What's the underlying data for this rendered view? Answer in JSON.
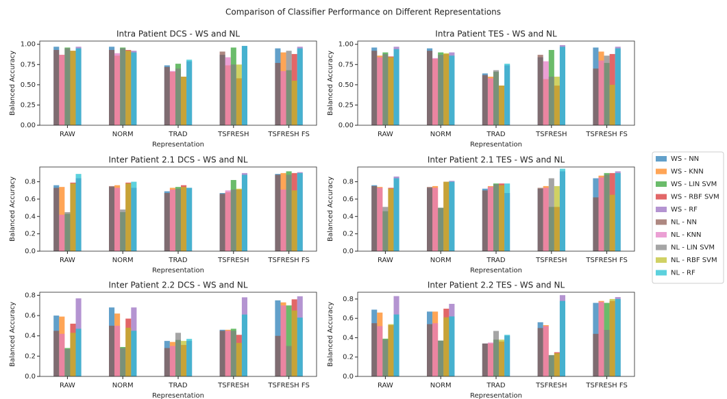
{
  "title": "Comparison of Classifier Performance on Different Representations",
  "chart_data": [
    {
      "type": "bar",
      "title": "Intra Patient DCS - WS and NL",
      "xlabel": "Representation",
      "ylabel": "Balanced Accuracy",
      "categories": [
        "RAW",
        "NORM",
        "TRAD",
        "TSFRESH",
        "TSFRESH FS"
      ],
      "ylim": [
        0,
        1.04
      ],
      "yticks": [
        {
          "value": 0,
          "label": "0.00"
        },
        {
          "value": 0.25,
          "label": "0.25"
        },
        {
          "value": 0.5,
          "label": "0.50"
        },
        {
          "value": 0.75,
          "label": "0.75"
        },
        {
          "value": 1,
          "label": "1.00"
        }
      ],
      "series": [
        {
          "name": "WS - NN",
          "color": "#1f77b4",
          "values": [
            0.97,
            0.97,
            0.74,
            0.87,
            0.95
          ]
        },
        {
          "name": "WS - KNN",
          "color": "#ff7f0e",
          "values": [
            0.87,
            0.86,
            0.66,
            0.74,
            0.9
          ]
        },
        {
          "name": "WS - LIN SVM",
          "color": "#2ca02c",
          "values": [
            0.96,
            0.96,
            0.76,
            0.96,
            0.68
          ]
        },
        {
          "name": "WS - RBF SVM",
          "color": "#d62728",
          "values": [
            0.92,
            0.93,
            0.6,
            0.58,
            0.88
          ]
        },
        {
          "name": "WS - RF",
          "color": "#9467bd",
          "values": [
            0.97,
            0.92,
            0.79,
            0.98,
            0.97
          ]
        },
        {
          "name": "NL - NN",
          "color": "#8c564b",
          "values": [
            0.93,
            0.93,
            0.72,
            0.91,
            0.77
          ]
        },
        {
          "name": "NL - KNN",
          "color": "#e377c2",
          "values": [
            0.87,
            0.89,
            0.67,
            0.84,
            0.67
          ]
        },
        {
          "name": "NL - LIN SVM",
          "color": "#7f7f7f",
          "values": [
            0.95,
            0.95,
            0.7,
            0.75,
            0.92
          ]
        },
        {
          "name": "NL - RBF SVM",
          "color": "#bcbd22",
          "values": [
            0.92,
            0.92,
            0.6,
            0.75,
            0.55
          ]
        },
        {
          "name": "NL - RF",
          "color": "#17becf",
          "values": [
            0.95,
            0.9,
            0.81,
            0.98,
            0.95
          ]
        }
      ]
    },
    {
      "type": "bar",
      "title": "Intra Patient TES - WS and NL",
      "xlabel": "Representation",
      "ylabel": "Balanced Accuracy",
      "categories": [
        "RAW",
        "NORM",
        "TRAD",
        "TSFRESH",
        "TSFRESH FS"
      ],
      "ylim": [
        0,
        1.04
      ],
      "yticks": [
        {
          "value": 0,
          "label": "0.00"
        },
        {
          "value": 0.25,
          "label": "0.25"
        },
        {
          "value": 0.5,
          "label": "0.50"
        },
        {
          "value": 0.75,
          "label": "0.75"
        },
        {
          "value": 1,
          "label": "1.00"
        }
      ],
      "series": [
        {
          "name": "WS - NN",
          "color": "#1f77b4",
          "values": [
            0.96,
            0.95,
            0.64,
            0.84,
            0.96
          ]
        },
        {
          "name": "WS - KNN",
          "color": "#ff7f0e",
          "values": [
            0.86,
            0.82,
            0.6,
            0.57,
            0.91
          ]
        },
        {
          "name": "WS - LIN SVM",
          "color": "#2ca02c",
          "values": [
            0.9,
            0.9,
            0.66,
            0.93,
            0.77
          ]
        },
        {
          "name": "WS - RBF SVM",
          "color": "#d62728",
          "values": [
            0.85,
            0.88,
            0.49,
            0.49,
            0.88
          ]
        },
        {
          "name": "WS - RF",
          "color": "#9467bd",
          "values": [
            0.97,
            0.9,
            0.74,
            0.99,
            0.97
          ]
        },
        {
          "name": "NL - NN",
          "color": "#8c564b",
          "values": [
            0.92,
            0.92,
            0.62,
            0.87,
            0.7
          ]
        },
        {
          "name": "NL - KNN",
          "color": "#e377c2",
          "values": [
            0.84,
            0.83,
            0.58,
            0.79,
            0.8
          ]
        },
        {
          "name": "NL - LIN SVM",
          "color": "#7f7f7f",
          "values": [
            0.88,
            0.87,
            0.68,
            0.6,
            0.86
          ]
        },
        {
          "name": "NL - RBF SVM",
          "color": "#bcbd22",
          "values": [
            0.84,
            0.89,
            0.49,
            0.6,
            0.5
          ]
        },
        {
          "name": "NL - RF",
          "color": "#17becf",
          "values": [
            0.94,
            0.86,
            0.76,
            0.97,
            0.95
          ]
        }
      ]
    },
    {
      "type": "bar",
      "title": "Inter Patient 2.1 DCS - WS and NL",
      "xlabel": "Representation",
      "ylabel": "Balanced Accuracy",
      "categories": [
        "RAW",
        "NORM",
        "TRAD",
        "TSFRESH",
        "TSFRESH FS"
      ],
      "ylim": [
        0,
        0.97
      ],
      "yticks": [
        {
          "value": 0,
          "label": "0.0"
        },
        0.2,
        0.4,
        0.6,
        0.8
      ],
      "series": [
        {
          "name": "WS - NN",
          "color": "#1f77b4",
          "values": [
            0.76,
            0.74,
            0.69,
            0.67,
            0.89
          ]
        },
        {
          "name": "WS - KNN",
          "color": "#ff7f0e",
          "values": [
            0.74,
            0.76,
            0.73,
            0.68,
            0.9
          ]
        },
        {
          "name": "WS - LIN SVM",
          "color": "#2ca02c",
          "values": [
            0.43,
            0.45,
            0.74,
            0.82,
            0.92
          ]
        },
        {
          "name": "WS - RBF SVM",
          "color": "#d62728",
          "values": [
            0.79,
            0.79,
            0.76,
            0.71,
            0.9
          ]
        },
        {
          "name": "WS - RF",
          "color": "#9467bd",
          "values": [
            0.84,
            0.73,
            0.73,
            0.9,
            0.91
          ]
        },
        {
          "name": "NL - NN",
          "color": "#8c564b",
          "values": [
            0.73,
            0.75,
            0.67,
            0.66,
            0.88
          ]
        },
        {
          "name": "NL - KNN",
          "color": "#e377c2",
          "values": [
            0.42,
            0.73,
            0.71,
            0.7,
            0.71
          ]
        },
        {
          "name": "NL - LIN SVM",
          "color": "#7f7f7f",
          "values": [
            0.45,
            0.48,
            0.72,
            0.71,
            0.88
          ]
        },
        {
          "name": "NL - RBF SVM",
          "color": "#bcbd22",
          "values": [
            0.78,
            0.78,
            0.74,
            0.72,
            0.7
          ]
        },
        {
          "name": "NL - RF",
          "color": "#17becf",
          "values": [
            0.89,
            0.8,
            0.73,
            0.88,
            0.9
          ]
        }
      ]
    },
    {
      "type": "bar",
      "title": "Inter Patient 2.1 TES - WS and NL",
      "xlabel": "Representation",
      "ylabel": "Balanced Accuracy",
      "categories": [
        "RAW",
        "NORM",
        "TRAD",
        "TSFRESH",
        "TSFRESH FS"
      ],
      "ylim": [
        0,
        0.97
      ],
      "yticks": [
        {
          "value": 0,
          "label": "0.0"
        },
        0.2,
        0.4,
        0.6,
        0.8
      ],
      "series": [
        {
          "name": "WS - NN",
          "color": "#1f77b4",
          "values": [
            0.76,
            0.73,
            0.72,
            0.72,
            0.84
          ]
        },
        {
          "name": "WS - KNN",
          "color": "#ff7f0e",
          "values": [
            0.74,
            0.75,
            0.75,
            0.75,
            0.87
          ]
        },
        {
          "name": "WS - LIN SVM",
          "color": "#2ca02c",
          "values": [
            0.46,
            0.5,
            0.78,
            0.51,
            0.9
          ]
        },
        {
          "name": "WS - RBF SVM",
          "color": "#d62728",
          "values": [
            0.73,
            0.8,
            0.78,
            0.51,
            0.9
          ]
        },
        {
          "name": "WS - RF",
          "color": "#9467bd",
          "values": [
            0.86,
            0.81,
            0.67,
            0.92,
            0.92
          ]
        },
        {
          "name": "NL - NN",
          "color": "#8c564b",
          "values": [
            0.75,
            0.74,
            0.7,
            0.73,
            0.62
          ]
        },
        {
          "name": "NL - KNN",
          "color": "#e377c2",
          "values": [
            0.73,
            0.73,
            0.74,
            0.73,
            0.85
          ]
        },
        {
          "name": "NL - LIN SVM",
          "color": "#7f7f7f",
          "values": [
            0.51,
            0.5,
            0.77,
            0.84,
            0.88
          ]
        },
        {
          "name": "NL - RBF SVM",
          "color": "#bcbd22",
          "values": [
            0.72,
            0.8,
            0.76,
            0.75,
            0.65
          ]
        },
        {
          "name": "NL - RF",
          "color": "#17becf",
          "values": [
            0.84,
            0.8,
            0.78,
            0.95,
            0.9
          ]
        }
      ]
    },
    {
      "type": "bar",
      "title": "Inter Patient 2.2 DCS - WS and NL",
      "xlabel": "Representation",
      "ylabel": "Balanced Accuracy",
      "categories": [
        "RAW",
        "NORM",
        "TRAD",
        "TSFRESH",
        "TSFRESH FS"
      ],
      "ylim": [
        0,
        0.83
      ],
      "yticks": [
        {
          "value": 0,
          "label": "0.0"
        },
        0.2,
        0.4,
        0.6,
        0.8
      ],
      "series": [
        {
          "name": "WS - NN",
          "color": "#1f77b4",
          "values": [
            0.6,
            0.68,
            0.35,
            0.46,
            0.75
          ]
        },
        {
          "name": "WS - KNN",
          "color": "#ff7f0e",
          "values": [
            0.59,
            0.62,
            0.34,
            0.46,
            0.73
          ]
        },
        {
          "name": "WS - LIN SVM",
          "color": "#2ca02c",
          "values": [
            0.28,
            0.29,
            0.36,
            0.47,
            0.7
          ]
        },
        {
          "name": "WS - RBF SVM",
          "color": "#d62728",
          "values": [
            0.52,
            0.57,
            0.31,
            0.41,
            0.76
          ]
        },
        {
          "name": "WS - RF",
          "color": "#9467bd",
          "values": [
            0.77,
            0.68,
            0.35,
            0.78,
            0.79
          ]
        },
        {
          "name": "NL - NN",
          "color": "#8c564b",
          "values": [
            0.45,
            0.5,
            0.28,
            0.45,
            0.4
          ]
        },
        {
          "name": "NL - KNN",
          "color": "#e377c2",
          "values": [
            0.42,
            0.5,
            0.3,
            0.45,
            0.7
          ]
        },
        {
          "name": "NL - LIN SVM",
          "color": "#7f7f7f",
          "values": [
            0.27,
            0.28,
            0.43,
            0.45,
            0.3
          ]
        },
        {
          "name": "NL - RBF SVM",
          "color": "#bcbd22",
          "values": [
            0.43,
            0.48,
            0.35,
            0.33,
            0.65
          ]
        },
        {
          "name": "NL - RF",
          "color": "#17becf",
          "values": [
            0.47,
            0.45,
            0.37,
            0.61,
            0.58
          ]
        }
      ]
    },
    {
      "type": "bar",
      "title": "Inter Patient 2.2 TES - WS and NL",
      "xlabel": "Representation",
      "ylabel": "Balanced Accuracy",
      "categories": [
        "RAW",
        "NORM",
        "TRAD",
        "TSFRESH",
        "TSFRESH FS"
      ],
      "ylim": [
        0,
        0.87
      ],
      "yticks": [
        {
          "value": 0,
          "label": "0.0"
        },
        0.2,
        0.4,
        0.6,
        0.8
      ],
      "series": [
        {
          "name": "WS - NN",
          "color": "#1f77b4",
          "values": [
            0.69,
            0.67,
            0.34,
            0.56,
            0.76
          ]
        },
        {
          "name": "WS - KNN",
          "color": "#ff7f0e",
          "values": [
            0.66,
            0.67,
            0.34,
            0.53,
            0.78
          ]
        },
        {
          "name": "WS - LIN SVM",
          "color": "#2ca02c",
          "values": [
            0.39,
            0.37,
            0.38,
            0.22,
            0.76
          ]
        },
        {
          "name": "WS - RBF SVM",
          "color": "#d62728",
          "values": [
            0.53,
            0.7,
            0.36,
            0.25,
            0.78
          ]
        },
        {
          "name": "WS - RF",
          "color": "#9467bd",
          "values": [
            0.83,
            0.75,
            0.42,
            0.84,
            0.82
          ]
        },
        {
          "name": "NL - NN",
          "color": "#8c564b",
          "values": [
            0.55,
            0.54,
            0.34,
            0.5,
            0.44
          ]
        },
        {
          "name": "NL - KNN",
          "color": "#e377c2",
          "values": [
            0.52,
            0.55,
            0.35,
            0.52,
            0.77
          ]
        },
        {
          "name": "NL - LIN SVM",
          "color": "#7f7f7f",
          "values": [
            0.38,
            0.37,
            0.47,
            0.22,
            0.48
          ]
        },
        {
          "name": "NL - RBF SVM",
          "color": "#bcbd22",
          "values": [
            0.54,
            0.61,
            0.38,
            0.24,
            0.8
          ]
        },
        {
          "name": "NL - RF",
          "color": "#17becf",
          "values": [
            0.64,
            0.62,
            0.43,
            0.78,
            0.8
          ]
        }
      ]
    }
  ]
}
